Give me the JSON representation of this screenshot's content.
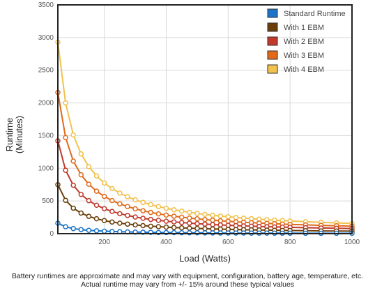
{
  "chart_data": {
    "type": "line",
    "xlabel": "Load (Watts)",
    "ylabel_lines": [
      "Runtime",
      "(Minutes)"
    ],
    "xlim": [
      50,
      1000
    ],
    "ylim": [
      0,
      3500
    ],
    "x_ticks": [
      200,
      400,
      600,
      800,
      1000
    ],
    "y_ticks": [
      0,
      500,
      1000,
      1500,
      2000,
      2500,
      3000,
      3500
    ],
    "grid": true,
    "legend_position": "top-right",
    "x": [
      50,
      75,
      100,
      125,
      150,
      175,
      200,
      225,
      250,
      275,
      300,
      325,
      350,
      375,
      400,
      425,
      450,
      475,
      500,
      525,
      550,
      575,
      600,
      625,
      650,
      675,
      700,
      725,
      750,
      775,
      800,
      850,
      900,
      950,
      1000
    ],
    "series": [
      {
        "name": "Standard Runtime",
        "color": "#1a73c9",
        "values": [
          160,
          105,
          78,
          62,
          51,
          44,
          38,
          33,
          30,
          27,
          24,
          22,
          20,
          18,
          17,
          16,
          15,
          14,
          13,
          12,
          11,
          10,
          10,
          9,
          9,
          8,
          8,
          8,
          7,
          7,
          7,
          6,
          6,
          5,
          5
        ]
      },
      {
        "name": "With 1 EBM",
        "color": "#6b3e0a",
        "values": [
          750,
          510,
          390,
          315,
          265,
          228,
          200,
          178,
          160,
          146,
          134,
          123,
          114,
          107,
          100,
          94,
          89,
          84,
          80,
          76,
          72,
          69,
          66,
          63,
          60,
          58,
          56,
          54,
          52,
          50,
          48,
          45,
          42,
          40,
          38
        ]
      },
      {
        "name": "With 2 EBM",
        "color": "#c0392b",
        "values": [
          1420,
          970,
          740,
          600,
          505,
          435,
          382,
          340,
          306,
          278,
          255,
          235,
          218,
          204,
          191,
          180,
          170,
          161,
          153,
          146,
          139,
          133,
          128,
          123,
          118,
          114,
          110,
          106,
          103,
          100,
          97,
          91,
          86,
          82,
          78
        ]
      },
      {
        "name": "With 3 EBM",
        "color": "#e06a1a",
        "values": [
          2160,
          1470,
          1110,
          900,
          756,
          650,
          570,
          507,
          456,
          415,
          380,
          350,
          325,
          303,
          284,
          267,
          252,
          239,
          227,
          216,
          206,
          197,
          189,
          181,
          174,
          168,
          162,
          157,
          152,
          147,
          142,
          134,
          127,
          120,
          115
        ]
      },
      {
        "name": "With 4 EBM",
        "color": "#f2c14e",
        "values": [
          2930,
          2000,
          1510,
          1220,
          1025,
          883,
          775,
          690,
          621,
          565,
          518,
          478,
          444,
          414,
          388,
          365,
          345,
          326,
          310,
          295,
          281,
          269,
          258,
          247,
          238,
          229,
          221,
          213,
          206,
          200,
          194,
          183,
          173,
          164,
          156
        ]
      }
    ]
  },
  "footnote": {
    "line1": "Battery runtimes are approximate and may vary with equipment, configuration, battery age, temperature, etc.",
    "line2": "Actual runtime may vary from +/- 15% around these typical values"
  }
}
